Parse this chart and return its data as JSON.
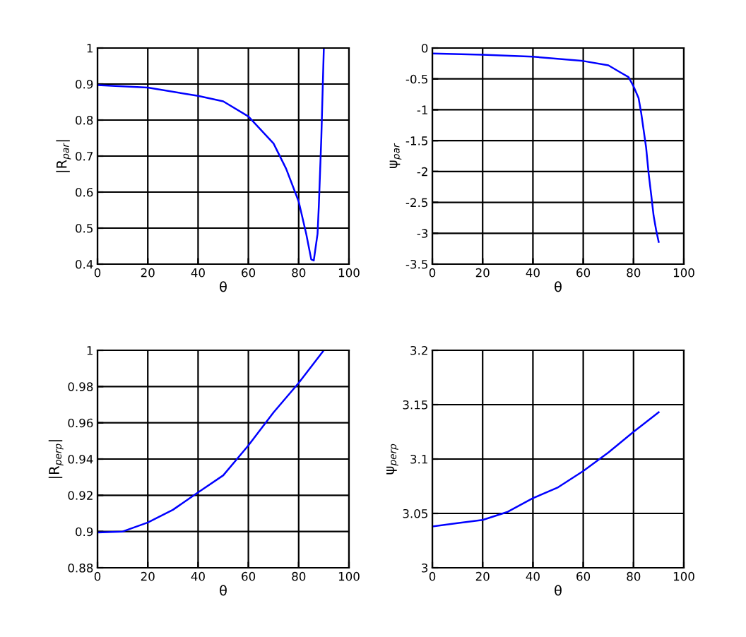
{
  "chart_data": [
    {
      "type": "line",
      "xlabel": "θ",
      "ylabel": "|R$_{par}$|",
      "x": [
        0,
        20,
        40,
        50,
        60,
        70,
        75,
        80,
        83,
        85,
        86,
        87.5,
        88,
        89,
        90
      ],
      "series": [
        {
          "color": "#0000ff",
          "values": [
            0.897,
            0.89,
            0.867,
            0.852,
            0.81,
            0.735,
            0.665,
            0.574,
            0.484,
            0.413,
            0.41,
            0.484,
            0.56,
            0.75,
            1.0
          ]
        }
      ],
      "xlim": [
        0,
        100
      ],
      "xticks": [
        0,
        20,
        40,
        60,
        80,
        100
      ],
      "ylim": [
        0.4,
        1
      ],
      "yticks": [
        0.4,
        0.5,
        0.6,
        0.7,
        0.8,
        0.9,
        1
      ],
      "grid": true
    },
    {
      "type": "line",
      "xlabel": "θ",
      "ylabel": "ψ$_{par}$",
      "x": [
        0,
        20,
        40,
        60,
        70,
        75,
        78,
        80,
        82,
        83,
        85,
        86,
        87,
        88,
        89,
        90
      ],
      "series": [
        {
          "color": "#0000ff",
          "values": [
            -0.09,
            -0.11,
            -0.14,
            -0.21,
            -0.28,
            -0.4,
            -0.47,
            -0.62,
            -0.81,
            -1.04,
            -1.61,
            -2.03,
            -2.37,
            -2.72,
            -2.95,
            -3.14
          ]
        }
      ],
      "xlim": [
        0,
        100
      ],
      "xticks": [
        0,
        20,
        40,
        60,
        80,
        100
      ],
      "ylim": [
        -3.5,
        0
      ],
      "yticks": [
        -3.5,
        -3,
        -2.5,
        -2,
        -1.5,
        -1,
        -0.5,
        0
      ],
      "grid": true
    },
    {
      "type": "line",
      "xlabel": "θ",
      "ylabel": "|R$_{perp}$|",
      "x": [
        0,
        10,
        20,
        30,
        40,
        50,
        60,
        70,
        80,
        90
      ],
      "series": [
        {
          "color": "#0000ff",
          "values": [
            0.8995,
            0.9,
            0.905,
            0.912,
            0.9216,
            0.931,
            0.9475,
            0.9657,
            0.982,
            1.0
          ]
        }
      ],
      "xlim": [
        0,
        100
      ],
      "xticks": [
        0,
        20,
        40,
        60,
        80,
        100
      ],
      "ylim": [
        0.88,
        1
      ],
      "yticks": [
        0.88,
        0.9,
        0.92,
        0.94,
        0.96,
        0.98,
        1
      ],
      "grid": true
    },
    {
      "type": "line",
      "xlabel": "θ",
      "ylabel": "ψ$_{perp}$",
      "x": [
        0,
        10,
        20,
        30,
        40,
        50,
        60,
        70,
        80,
        90
      ],
      "series": [
        {
          "color": "#0000ff",
          "values": [
            3.038,
            3.041,
            3.044,
            3.0515,
            3.064,
            3.074,
            3.089,
            3.106,
            3.125,
            3.143
          ]
        }
      ],
      "xlim": [
        0,
        100
      ],
      "xticks": [
        0,
        20,
        40,
        60,
        80,
        100
      ],
      "ylim": [
        3,
        3.2
      ],
      "yticks": [
        3,
        3.05,
        3.1,
        3.15,
        3.2
      ],
      "grid": true
    }
  ]
}
